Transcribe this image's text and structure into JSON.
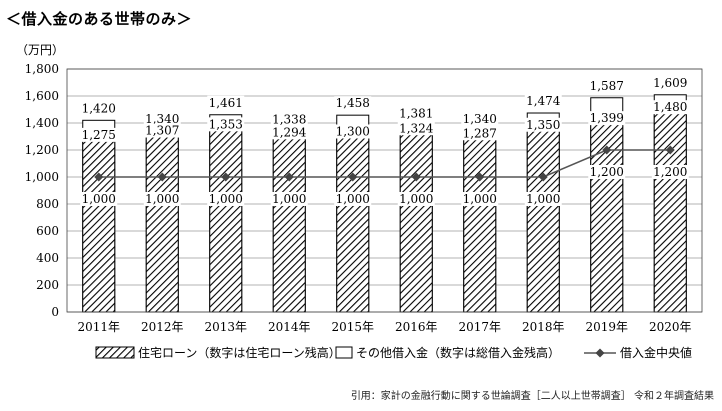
{
  "chart_data": {
    "type": "bar",
    "title": "＜借入金のある世帯のみ＞",
    "ylabel": "（万円）",
    "categories": [
      "2011年",
      "2012年",
      "2013年",
      "2014年",
      "2015年",
      "2016年",
      "2017年",
      "2018年",
      "2019年",
      "2020年"
    ],
    "ylim": [
      0,
      1800
    ],
    "yticks": [
      "0",
      "200",
      "400",
      "600",
      "800",
      "1,000",
      "1,200",
      "1,400",
      "1,600",
      "1,800"
    ],
    "grid": true,
    "series": [
      {
        "name": "住宅ローン（数字は住宅ローン残高）",
        "kind": "bar",
        "values": [
          1275,
          1307,
          1353,
          1294,
          1300,
          1324,
          1287,
          1350,
          1399,
          1480
        ],
        "labels": [
          "1,275",
          "1,307",
          "1,353",
          "1,294",
          "1,300",
          "1,324",
          "1,287",
          "1,350",
          "1,399",
          "1,480"
        ]
      },
      {
        "name": "その他借入金（数字は総借入金残高）",
        "kind": "bar-total",
        "values": [
          1420,
          1340,
          1461,
          1338,
          1458,
          1381,
          1340,
          1474,
          1587,
          1609
        ],
        "labels": [
          "1,420",
          "1,340",
          "1,461",
          "1,338",
          "1,458",
          "1,381",
          "1,340",
          "1,474",
          "1,587",
          "1,609"
        ]
      },
      {
        "name": "借入金中央値",
        "kind": "line",
        "values": [
          1000,
          1000,
          1000,
          1000,
          1000,
          1000,
          1000,
          1000,
          1200,
          1200
        ],
        "labels": [
          "1,000",
          "1,000",
          "1,000",
          "1,000",
          "1,000",
          "1,000",
          "1,000",
          "1,000",
          "1,200",
          "1,200"
        ]
      }
    ],
    "legend_position": "bottom",
    "source": "引用：家計の金融行動に関する世論調査［二人以上世帯調査］ 令和２年調査結果"
  }
}
